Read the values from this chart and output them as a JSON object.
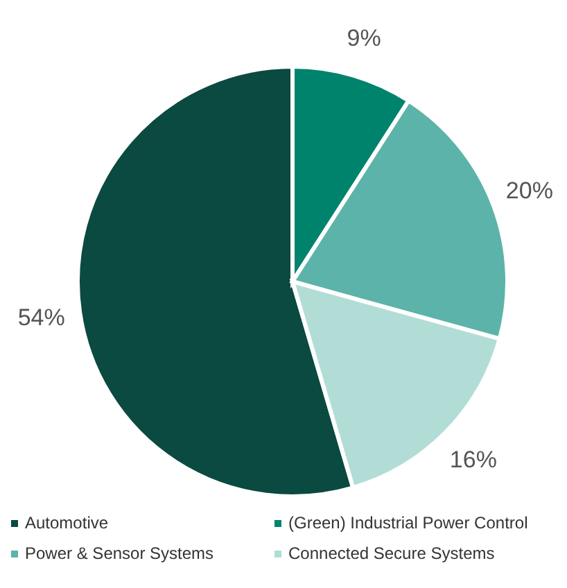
{
  "chart_data": {
    "type": "pie",
    "categories": [
      "Automotive",
      "(Green) Industrial Power Control",
      "Power & Sensor Systems",
      "Connected Secure Systems"
    ],
    "values": [
      54,
      9,
      20,
      16
    ],
    "colors": [
      "#0a4a40",
      "#00836d",
      "#5cb3a9",
      "#b2ddd7"
    ],
    "value_labels": [
      "54%",
      "9%",
      "20%",
      "16%"
    ],
    "legend": "bottom"
  }
}
